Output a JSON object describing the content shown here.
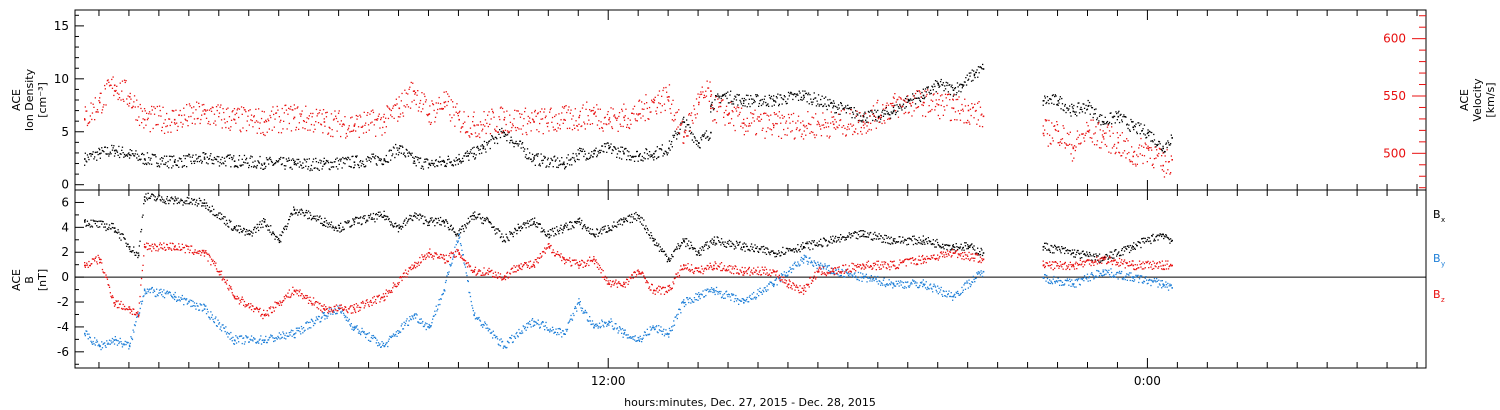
{
  "chart_data": [
    {
      "type": "scatter",
      "panel": "top",
      "ylabel_left": [
        "ACE",
        "Ion Density",
        "[cm⁻³]"
      ],
      "ylabel_right": [
        "ACE",
        "Velocity",
        "[km/s]"
      ],
      "y_left": {
        "ylim": [
          -0.5,
          16.5
        ],
        "ticks": [
          0,
          5,
          10,
          15
        ]
      },
      "y_right": {
        "ylim": [
          468,
          625
        ],
        "ticks": [
          500,
          550,
          600
        ]
      },
      "series": [
        {
          "axis": "left",
          "color": "#000000",
          "segments": [
            {
              "x": [
                0,
                0.5,
                1,
                1.5,
                2,
                3,
                4,
                5,
                6,
                7,
                8,
                9,
                10,
                10.5,
                11,
                11.5,
                12,
                12.5,
                12.8,
                13,
                13.3,
                14,
                15,
                16,
                16.5,
                17,
                17.5,
                18,
                18.5,
                19,
                19.5,
                20,
                20.5,
                20.9
              ],
              "y": [
                2.5,
                3,
                3.3,
                2.9,
                2.5,
                2.2,
                2.5,
                2.3,
                2.1,
                2.0,
                2.0,
                2.2,
                2.5,
                3.5,
                2.3,
                2.0,
                2.2,
                2.5,
                2.8,
                3.0,
                3.5,
                5.0,
                2.5,
                2.0,
                3.0,
                3.0,
                3.5,
                3.0,
                2.8,
                3.0,
                3.5,
                6.0,
                4.0,
                5.0
              ]
            },
            {
              "x": [
                20.9,
                21.3,
                22,
                23,
                24,
                25,
                26,
                26.5,
                27,
                27.5,
                28,
                28.5,
                29,
                29.3,
                29.7,
                30
              ],
              "y": [
                7.5,
                8.5,
                8.0,
                8.0,
                8.5,
                7.5,
                6.5,
                6.5,
                7.0,
                8.0,
                8.5,
                9.5,
                9.0,
                9.5,
                10.5,
                11.0
              ]
            },
            {
              "x": [
                32,
                32.5,
                33,
                33.5,
                34,
                34.5,
                35,
                35.5,
                36,
                36.3
              ],
              "y": [
                8.0,
                8.0,
                7.0,
                7.5,
                6.0,
                6.5,
                5.5,
                5.0,
                3.5,
                4.5
              ]
            }
          ]
        },
        {
          "axis": "right",
          "color": "#e81010",
          "segments": [
            {
              "x": [
                0,
                0.5,
                1,
                1.5,
                2,
                3,
                4,
                5,
                6,
                7,
                8,
                9,
                10,
                10.5,
                11,
                11.5,
                12,
                12.5,
                13,
                14,
                15,
                16,
                16.5,
                17,
                17.5,
                18,
                18.5,
                19,
                19.5,
                20,
                20.5,
                20.9
              ],
              "y": [
                530,
                545,
                560,
                550,
                530,
                530,
                535,
                530,
                528,
                532,
                528,
                525,
                528,
                540,
                555,
                535,
                545,
                530,
                525,
                530,
                528,
                530,
                532,
                535,
                530,
                532,
                535,
                545,
                550,
                515,
                545,
                555
              ]
            },
            {
              "x": [
                20.9,
                21.5,
                22,
                23,
                24,
                25,
                26,
                27,
                28,
                28.5,
                29,
                29.5,
                30
              ],
              "y": [
                540,
                535,
                527,
                525,
                525,
                526,
                528,
                542,
                545,
                543,
                540,
                538,
                533
              ]
            },
            {
              "x": [
                32,
                32.5,
                33,
                33.5,
                34,
                34.5,
                35,
                35.5,
                36,
                36.3
              ],
              "y": [
                518,
                520,
                505,
                520,
                515,
                510,
                498,
                505,
                490,
                495
              ]
            }
          ]
        }
      ]
    },
    {
      "type": "scatter",
      "panel": "bottom",
      "ylabel": [
        "ACE",
        "B",
        "[nT]"
      ],
      "ylim": [
        -7.3,
        7.0
      ],
      "yticks": [
        -6,
        -4,
        -2,
        0,
        2,
        4,
        6
      ],
      "zero_line": true,
      "legend": [
        {
          "label": "B",
          "sub": "x",
          "color": "#000000"
        },
        {
          "label": "B",
          "sub": "y",
          "color": "#1e7fd8"
        },
        {
          "label": "B",
          "sub": "z",
          "color": "#e81010"
        }
      ],
      "series": [
        {
          "name": "Bx",
          "color": "#000000",
          "segments": [
            {
              "x": [
                0,
                1,
                1.5,
                1.8,
                2,
                3,
                4,
                5,
                5.5,
                6,
                6.5,
                7,
                8,
                8.5,
                9,
                10,
                10.5,
                11,
                11.5,
                12,
                12.5,
                13,
                13.5,
                14,
                14.5,
                15,
                15.5,
                16,
                16.5,
                17,
                17.5,
                18,
                18.5,
                19,
                19.5,
                20,
                20.5,
                21,
                22,
                23,
                24,
                25,
                26,
                27,
                28,
                29,
                29.5,
                30
              ],
              "y": [
                4.5,
                4.0,
                2.5,
                1.8,
                6.5,
                6.2,
                6.0,
                4.0,
                3.5,
                4.5,
                3.0,
                5.5,
                4.5,
                4.0,
                4.5,
                5.0,
                4.0,
                5.0,
                4.5,
                4.5,
                3.5,
                5.0,
                4.5,
                3.0,
                4.0,
                4.5,
                3.5,
                4.0,
                4.5,
                3.5,
                4.0,
                4.5,
                5.0,
                3.0,
                1.5,
                3.0,
                2.0,
                3.0,
                2.5,
                2.0,
                2.5,
                3.0,
                3.5,
                3.0,
                3.0,
                2.5,
                2.5,
                2.0
              ]
            },
            {
              "x": [
                32,
                33,
                34,
                35,
                36,
                36.3
              ],
              "y": [
                2.5,
                2.0,
                1.5,
                2.5,
                3.5,
                3.0
              ]
            }
          ]
        },
        {
          "name": "By",
          "color": "#1e7fd8",
          "segments": [
            {
              "x": [
                0,
                0.5,
                1,
                1.5,
                2,
                3,
                4,
                5,
                6,
                7,
                8,
                8.5,
                9,
                10,
                11,
                11.5,
                12,
                12.5,
                13,
                14,
                15,
                16,
                16.5,
                17,
                17.5,
                18,
                18.5,
                19,
                19.5,
                20,
                20.5,
                21,
                22,
                23,
                24,
                25,
                26,
                27,
                28,
                29,
                30
              ],
              "y": [
                -4.5,
                -5.5,
                -5.0,
                -5.5,
                -1.0,
                -1.5,
                -2.5,
                -5.0,
                -5.0,
                -4.5,
                -3.0,
                -2.5,
                -4.0,
                -5.5,
                -3.0,
                -4.0,
                -1.0,
                3.5,
                -3.0,
                -5.5,
                -3.5,
                -4.5,
                -2.0,
                -4.0,
                -3.5,
                -4.5,
                -5.0,
                -4.0,
                -4.5,
                -2.0,
                -1.5,
                -1.0,
                -2.0,
                -0.5,
                1.5,
                0.5,
                0.0,
                -0.5,
                -0.5,
                -1.5,
                0.5
              ]
            },
            {
              "x": [
                32,
                33,
                34,
                35,
                36,
                36.3
              ],
              "y": [
                0.0,
                -0.5,
                0.5,
                0.0,
                -0.5,
                -0.8
              ]
            }
          ]
        },
        {
          "name": "Bz",
          "color": "#e81010",
          "segments": [
            {
              "x": [
                0,
                0.5,
                1,
                1.5,
                1.8,
                2,
                3,
                4,
                4.5,
                5,
                6,
                7,
                8,
                9,
                10,
                11,
                11.5,
                12,
                12.5,
                13,
                13.5,
                14,
                14.5,
                15,
                15.5,
                16,
                16.5,
                17,
                17.5,
                18,
                18.5,
                19,
                19.5,
                20,
                20.5,
                21,
                22,
                23,
                23.5,
                24,
                24.5,
                25,
                26,
                27,
                28,
                29,
                30
              ],
              "y": [
                1.0,
                1.5,
                -2.0,
                -2.5,
                -3.0,
                2.5,
                2.5,
                2.0,
                0.5,
                -1.5,
                -3.0,
                -1.0,
                -2.5,
                -2.5,
                -1.5,
                1.0,
                2.0,
                1.5,
                2.0,
                0.5,
                0.5,
                0.0,
                1.0,
                1.0,
                2.5,
                1.5,
                1.0,
                1.5,
                -0.5,
                -0.5,
                0.5,
                -1.0,
                -1.0,
                1.0,
                0.5,
                1.0,
                0.5,
                0.5,
                -0.5,
                -1.0,
                0.5,
                0.5,
                1.0,
                1.0,
                1.5,
                2.0,
                1.5
              ]
            },
            {
              "x": [
                32,
                33,
                34,
                35,
                36,
                36.3
              ],
              "y": [
                1.0,
                1.0,
                1.5,
                1.0,
                1.0,
                1.0
              ]
            }
          ]
        }
      ]
    }
  ],
  "x_axis": {
    "xlim": [
      -0.3,
      44.8
    ],
    "tick_labels": [
      {
        "x": 17.5,
        "label": "12:00"
      },
      {
        "x": 35.5,
        "label": "0:00"
      }
    ],
    "minor_ticks": [
      0.5,
      1.5,
      2.5,
      3.5,
      4.5,
      5.5,
      6.5,
      7.5,
      8.5,
      9.5,
      10.5,
      11.5,
      12.5,
      13.5,
      14.5,
      15.5,
      16.5,
      18.5,
      19.5,
      20.5,
      21.5,
      22.5,
      23.5,
      24.5,
      25.5,
      26.5,
      27.5,
      28.5,
      29.5,
      30.5,
      31.5,
      32.5,
      33.5,
      34.5,
      36.5,
      37.5,
      38.5,
      39.5,
      40.5,
      41.5,
      42.5,
      43.5,
      44.5
    ],
    "xlabel": "hours:minutes, Dec. 27, 2015 - Dec. 28, 2015"
  }
}
